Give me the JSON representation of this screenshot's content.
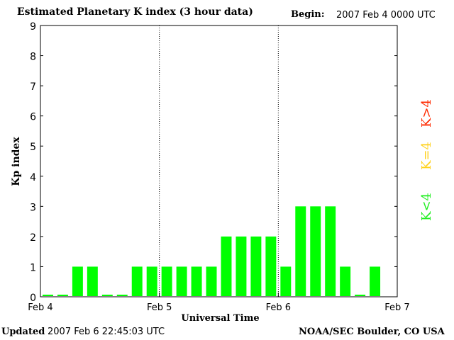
{
  "header": {
    "title": "Estimated Planetary K index (3 hour data)",
    "begin_label": "Begin:",
    "begin_value": "2007 Feb 4 0000 UTC"
  },
  "footer": {
    "updated_label": "Updated",
    "updated_value": "2007 Feb  6 22:45:03 UTC",
    "source": "NOAA/SEC Boulder, CO USA"
  },
  "legend": {
    "high": "K>4",
    "equal": "K=4",
    "low": "K<4",
    "colors": {
      "high": "#ff2a00",
      "equal": "#ffd21e",
      "low": "#22ee22"
    }
  },
  "chart_data": {
    "type": "bar",
    "xlabel": "Universal Time",
    "ylabel": "Kp index",
    "ylim": [
      0,
      9
    ],
    "yticks": [
      "0",
      "1",
      "2",
      "3",
      "4",
      "5",
      "6",
      "7",
      "8",
      "9"
    ],
    "xticks": [
      "Feb 4",
      "Feb 5",
      "Feb 6",
      "Feb 7"
    ],
    "day_separators": [
      "Feb 5",
      "Feb 6"
    ],
    "bar_interval_hours": 3,
    "values": [
      0,
      0,
      1,
      1,
      0,
      0,
      1,
      1,
      1,
      1,
      1,
      1,
      2,
      2,
      2,
      2,
      1,
      3,
      3,
      3,
      1,
      0,
      1
    ],
    "bar_color": "#00ff00"
  }
}
